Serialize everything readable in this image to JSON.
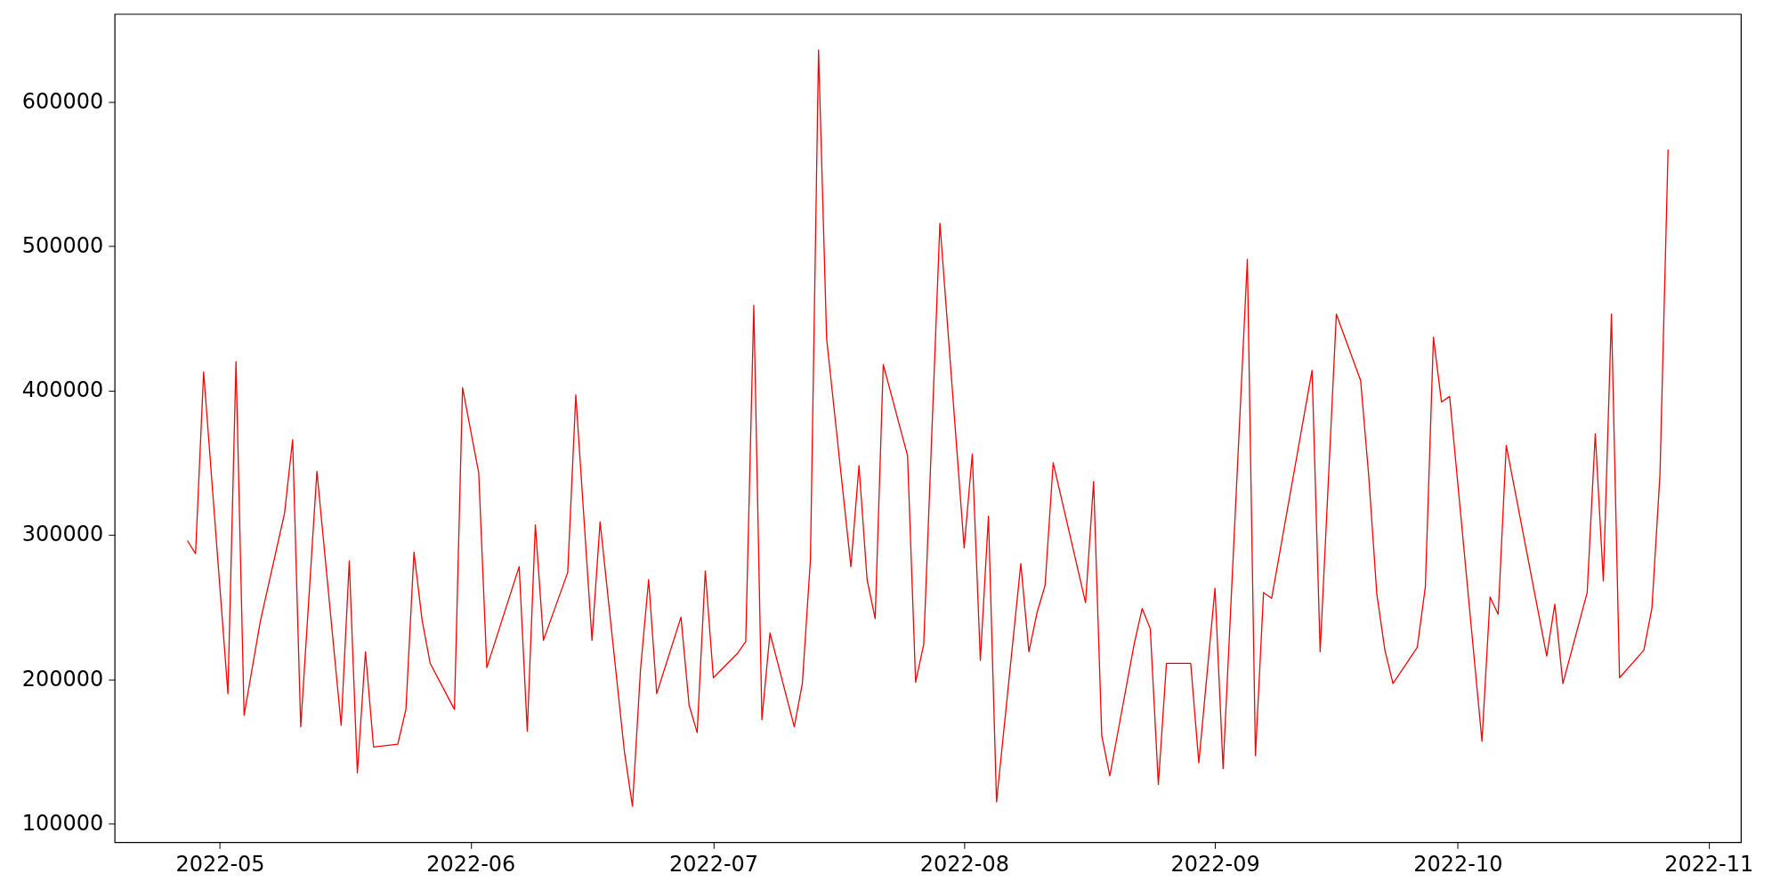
{
  "chart_data": {
    "type": "line",
    "x": [
      "2022-04-27",
      "2022-04-28",
      "2022-04-29",
      "2022-05-02",
      "2022-05-03",
      "2022-05-04",
      "2022-05-06",
      "2022-05-09",
      "2022-05-10",
      "2022-05-11",
      "2022-05-13",
      "2022-05-16",
      "2022-05-17",
      "2022-05-18",
      "2022-05-19",
      "2022-05-20",
      "2022-05-23",
      "2022-05-24",
      "2022-05-25",
      "2022-05-26",
      "2022-05-27",
      "2022-05-30",
      "2022-05-31",
      "2022-06-02",
      "2022-06-03",
      "2022-06-07",
      "2022-06-08",
      "2022-06-09",
      "2022-06-10",
      "2022-06-13",
      "2022-06-14",
      "2022-06-16",
      "2022-06-17",
      "2022-06-20",
      "2022-06-21",
      "2022-06-22",
      "2022-06-23",
      "2022-06-24",
      "2022-06-27",
      "2022-06-28",
      "2022-06-29",
      "2022-06-30",
      "2022-07-01",
      "2022-07-04",
      "2022-07-05",
      "2022-07-06",
      "2022-07-07",
      "2022-07-08",
      "2022-07-11",
      "2022-07-12",
      "2022-07-13",
      "2022-07-14",
      "2022-07-15",
      "2022-07-18",
      "2022-07-19",
      "2022-07-20",
      "2022-07-21",
      "2022-07-22",
      "2022-07-25",
      "2022-07-26",
      "2022-07-27",
      "2022-07-29",
      "2022-08-01",
      "2022-08-02",
      "2022-08-03",
      "2022-08-04",
      "2022-08-05",
      "2022-08-08",
      "2022-08-09",
      "2022-08-10",
      "2022-08-11",
      "2022-08-12",
      "2022-08-16",
      "2022-08-17",
      "2022-08-18",
      "2022-08-19",
      "2022-08-22",
      "2022-08-23",
      "2022-08-24",
      "2022-08-25",
      "2022-08-26",
      "2022-08-29",
      "2022-08-30",
      "2022-09-01",
      "2022-09-02",
      "2022-09-05",
      "2022-09-06",
      "2022-09-07",
      "2022-09-08",
      "2022-09-13",
      "2022-09-14",
      "2022-09-16",
      "2022-09-19",
      "2022-09-20",
      "2022-09-21",
      "2022-09-22",
      "2022-09-23",
      "2022-09-26",
      "2022-09-27",
      "2022-09-28",
      "2022-09-29",
      "2022-09-30",
      "2022-10-04",
      "2022-10-05",
      "2022-10-06",
      "2022-10-07",
      "2022-10-12",
      "2022-10-13",
      "2022-10-14",
      "2022-10-17",
      "2022-10-18",
      "2022-10-19",
      "2022-10-20",
      "2022-10-21",
      "2022-10-24",
      "2022-10-25",
      "2022-10-26",
      "2022-10-27"
    ],
    "series": [
      {
        "color": "#ff0000",
        "values": [
          296000,
          287000,
          413000,
          190000,
          420000,
          175000,
          240000,
          315000,
          366000,
          167000,
          344000,
          168000,
          282000,
          135000,
          219000,
          153000,
          155000,
          179000,
          288000,
          241000,
          211000,
          179000,
          402000,
          343000,
          208000,
          278000,
          164000,
          307000,
          227000,
          274000,
          397000,
          227000,
          309000,
          150000,
          112000,
          207000,
          269000,
          190000,
          243000,
          182000,
          163000,
          275000,
          201000,
          218000,
          226000,
          459000,
          172000,
          232000,
          167000,
          197000,
          283000,
          636000,
          436000,
          278000,
          348000,
          269000,
          242000,
          418000,
          355000,
          198000,
          224000,
          516000,
          291000,
          356000,
          213000,
          313000,
          115000,
          280000,
          219000,
          246000,
          265000,
          350000,
          253000,
          337000,
          161000,
          133000,
          224000,
          249000,
          235000,
          127000,
          211000,
          211000,
          142000,
          263000,
          138000,
          491000,
          147000,
          260000,
          256000,
          414000,
          219000,
          453000,
          407000,
          341000,
          259000,
          220000,
          197000,
          222000,
          264000,
          437000,
          392000,
          396000,
          157000,
          257000,
          245000,
          362000,
          216000,
          252000,
          197000,
          260000,
          370000,
          268000,
          453000,
          201000,
          220000,
          249000,
          342000,
          567000
        ]
      }
    ],
    "xlim": [
      "2022-04-18",
      "2022-11-05"
    ],
    "xticks": [
      {
        "value": "2022-05-01",
        "label": "2022-05"
      },
      {
        "value": "2022-06-01",
        "label": "2022-06"
      },
      {
        "value": "2022-07-01",
        "label": "2022-07"
      },
      {
        "value": "2022-08-01",
        "label": "2022-08"
      },
      {
        "value": "2022-09-01",
        "label": "2022-09"
      },
      {
        "value": "2022-10-01",
        "label": "2022-10"
      },
      {
        "value": "2022-11-01",
        "label": "2022-11"
      }
    ],
    "ylim": [
      87000,
      661000
    ],
    "yticks": [
      100000,
      200000,
      300000,
      400000,
      500000,
      600000
    ],
    "grid": false,
    "marker": "none",
    "line_style": "solid"
  }
}
